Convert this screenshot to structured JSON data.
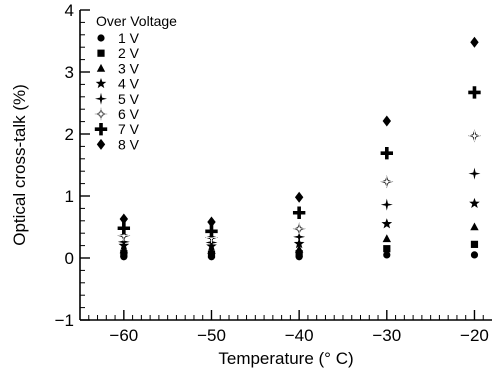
{
  "chart_data": {
    "type": "scatter",
    "xlabel": "Temperature (° C)",
    "ylabel": "Optical cross-talk (%)",
    "xlim": [
      -65,
      -18
    ],
    "ylim": [
      -1,
      4
    ],
    "xticks": [
      -60,
      -50,
      -40,
      -30,
      -20
    ],
    "yticks": [
      -1,
      0,
      1,
      2,
      3,
      4
    ],
    "x_tick_labels": [
      "−60",
      "−50",
      "−40",
      "−30",
      "−20"
    ],
    "y_tick_labels": [
      "−1",
      "0",
      "1",
      "2",
      "3",
      "4"
    ],
    "legend": {
      "title": "Over Voltage",
      "placement": "top-left"
    },
    "grid": false,
    "color": "#000000",
    "series": [
      {
        "name": "1 V",
        "marker": "circle",
        "x": [
          -60,
          -50,
          -40,
          -30,
          -20
        ],
        "y": [
          0.02,
          0.02,
          0.02,
          0.05,
          0.05
        ]
      },
      {
        "name": "2 V",
        "marker": "square",
        "x": [
          -60,
          -50,
          -40,
          -30,
          -20
        ],
        "y": [
          0.07,
          0.06,
          0.07,
          0.15,
          0.22
        ]
      },
      {
        "name": "3 V",
        "marker": "triangle",
        "x": [
          -60,
          -50,
          -40,
          -30,
          -20
        ],
        "y": [
          0.13,
          0.12,
          0.14,
          0.31,
          0.5
        ]
      },
      {
        "name": "4 V",
        "marker": "star",
        "x": [
          -60,
          -50,
          -40,
          -30,
          -20
        ],
        "y": [
          0.2,
          0.19,
          0.23,
          0.55,
          0.88
        ]
      },
      {
        "name": "5 V",
        "marker": "four-point-star",
        "x": [
          -60,
          -50,
          -40,
          -30,
          -20
        ],
        "y": [
          0.26,
          0.25,
          0.34,
          0.86,
          1.36
        ]
      },
      {
        "name": "6 V",
        "marker": "open-cross",
        "x": [
          -60,
          -50,
          -40,
          -30,
          -20
        ],
        "y": [
          0.36,
          0.33,
          0.47,
          1.23,
          1.97
        ]
      },
      {
        "name": "7 V",
        "marker": "cross",
        "x": [
          -60,
          -50,
          -40,
          -30,
          -20
        ],
        "y": [
          0.48,
          0.43,
          0.73,
          1.69,
          2.67
        ]
      },
      {
        "name": "8 V",
        "marker": "diamond",
        "x": [
          -60,
          -50,
          -40,
          -30,
          -20
        ],
        "y": [
          0.63,
          0.58,
          0.98,
          2.21,
          3.48
        ]
      }
    ]
  }
}
